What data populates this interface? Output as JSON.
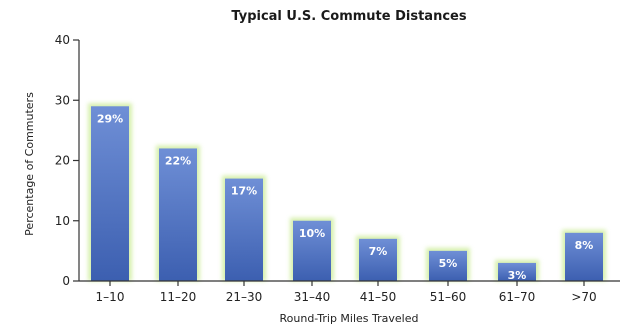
{
  "chart_data": {
    "type": "bar",
    "title": "Typical U.S. Commute Distances",
    "xlabel": "Round-Trip Miles Traveled",
    "ylabel": "Percentage of Commuters",
    "categories": [
      "1–10",
      "11–20",
      "21–30",
      "31–40",
      "41–50",
      "51–60",
      "61–70",
      ">70"
    ],
    "values": [
      29,
      22,
      17,
      10,
      7,
      5,
      3,
      8
    ],
    "value_labels": [
      "29%",
      "22%",
      "17%",
      "10%",
      "7%",
      "5%",
      "3%",
      "8%"
    ],
    "ylim": [
      0,
      40
    ],
    "yticks": [
      "0",
      "10",
      "20",
      "30",
      "40"
    ],
    "grid": false,
    "legend": "none",
    "colors": {
      "bar_top": "#6f8fd6",
      "bar_bottom": "#3c5fb0",
      "bar_glow": "#b5e36a",
      "axis": "#333333"
    }
  }
}
